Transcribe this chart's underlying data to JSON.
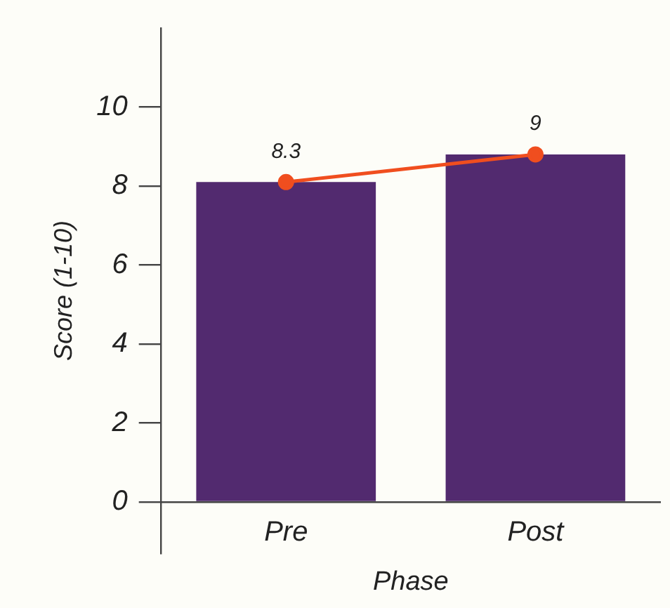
{
  "chart_data": {
    "type": "bar",
    "xlabel": "Phase",
    "ylabel": "Score (1-10)",
    "categories": [
      "Pre",
      "Post"
    ],
    "series": [
      {
        "type": "bar",
        "color": "#522a6f",
        "values": [
          8.1,
          8.8
        ]
      },
      {
        "type": "line",
        "color": "#f04e1f",
        "values": [
          8.1,
          8.8
        ],
        "marker": "circle"
      }
    ],
    "annotations": [
      {
        "text": "8.3",
        "x": "Pre",
        "y": 8.1
      },
      {
        "text": "9",
        "x": "Post",
        "y": 8.8
      }
    ],
    "ylim": [
      -1.3,
      12
    ],
    "yticks": [
      0,
      2,
      4,
      6,
      8,
      10
    ],
    "grid": false,
    "legend": false
  }
}
